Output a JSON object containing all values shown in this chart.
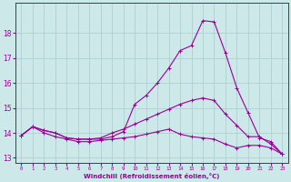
{
  "background_color": "#cce8e8",
  "grid_color": "#aacccc",
  "line_color": "#990099",
  "xlabel": "Windchill (Refroidissement éolien,°C)",
  "xlim": [
    -0.5,
    23.5
  ],
  "ylim": [
    12.8,
    19.2
  ],
  "yticks": [
    13,
    14,
    15,
    16,
    17,
    18
  ],
  "xticks": [
    0,
    1,
    2,
    3,
    4,
    5,
    6,
    7,
    8,
    9,
    10,
    11,
    12,
    13,
    14,
    15,
    16,
    17,
    18,
    19,
    20,
    21,
    22,
    23
  ],
  "curve1_x": [
    0,
    1,
    2,
    3,
    4,
    5,
    6,
    7,
    8,
    9,
    10,
    11,
    12,
    13,
    14,
    15,
    16,
    17,
    18,
    19,
    20,
    21,
    22,
    23
  ],
  "curve1_y": [
    13.9,
    14.25,
    14.1,
    14.0,
    13.8,
    13.75,
    13.75,
    13.75,
    13.85,
    14.05,
    15.15,
    15.5,
    16.0,
    16.6,
    17.3,
    17.5,
    18.5,
    18.45,
    17.2,
    15.8,
    14.8,
    13.8,
    13.65,
    13.15
  ],
  "curve2_x": [
    0,
    1,
    2,
    3,
    4,
    5,
    6,
    7,
    8,
    9,
    10,
    11,
    12,
    13,
    14,
    15,
    16,
    17,
    18,
    19,
    20,
    21,
    22,
    23
  ],
  "curve2_y": [
    13.9,
    14.25,
    14.1,
    14.0,
    13.8,
    13.75,
    13.75,
    13.8,
    14.0,
    14.15,
    14.35,
    14.55,
    14.75,
    14.95,
    15.15,
    15.3,
    15.4,
    15.3,
    14.75,
    14.3,
    13.85,
    13.85,
    13.55,
    13.15
  ],
  "curve3_x": [
    0,
    1,
    2,
    3,
    4,
    5,
    6,
    7,
    8,
    9,
    10,
    11,
    12,
    13,
    14,
    15,
    16,
    17,
    18,
    19,
    20,
    21,
    22,
    23
  ],
  "curve3_y": [
    13.9,
    14.25,
    14.0,
    13.85,
    13.75,
    13.65,
    13.65,
    13.7,
    13.75,
    13.8,
    13.85,
    13.95,
    14.05,
    14.15,
    13.95,
    13.85,
    13.8,
    13.75,
    13.55,
    13.4,
    13.5,
    13.5,
    13.4,
    13.15
  ]
}
